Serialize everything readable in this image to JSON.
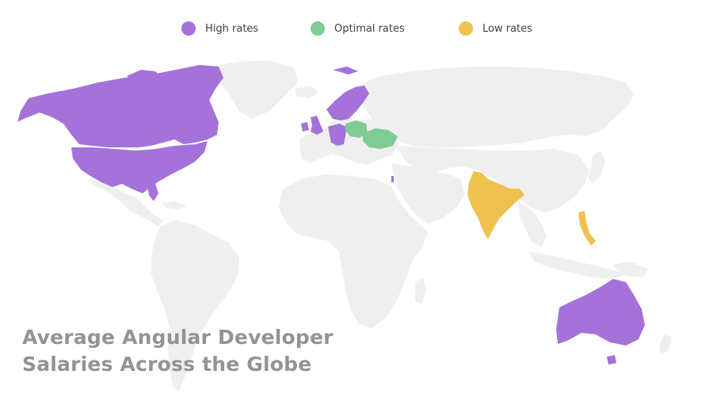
{
  "legend": {
    "items": [
      {
        "label": "High rates",
        "color": "#a472d9"
      },
      {
        "label": "Optimal rates",
        "color": "#7ecb96"
      },
      {
        "label": "Low rates",
        "color": "#efc24f"
      }
    ]
  },
  "title": {
    "line1": "Average Angular Developer",
    "line2": "Salaries Across the Globe"
  },
  "map": {
    "base_color": "#efefef",
    "regions": {
      "canada": "high",
      "usa": "high",
      "uk": "high",
      "ireland": "high",
      "germany": "high",
      "netherlands": "high",
      "switzerland": "high",
      "sweden": "high",
      "norway": "high",
      "finland": "high",
      "israel": "high",
      "australia": "high",
      "poland": "optimal",
      "ukraine": "optimal",
      "india": "low",
      "philippines": "low"
    }
  }
}
